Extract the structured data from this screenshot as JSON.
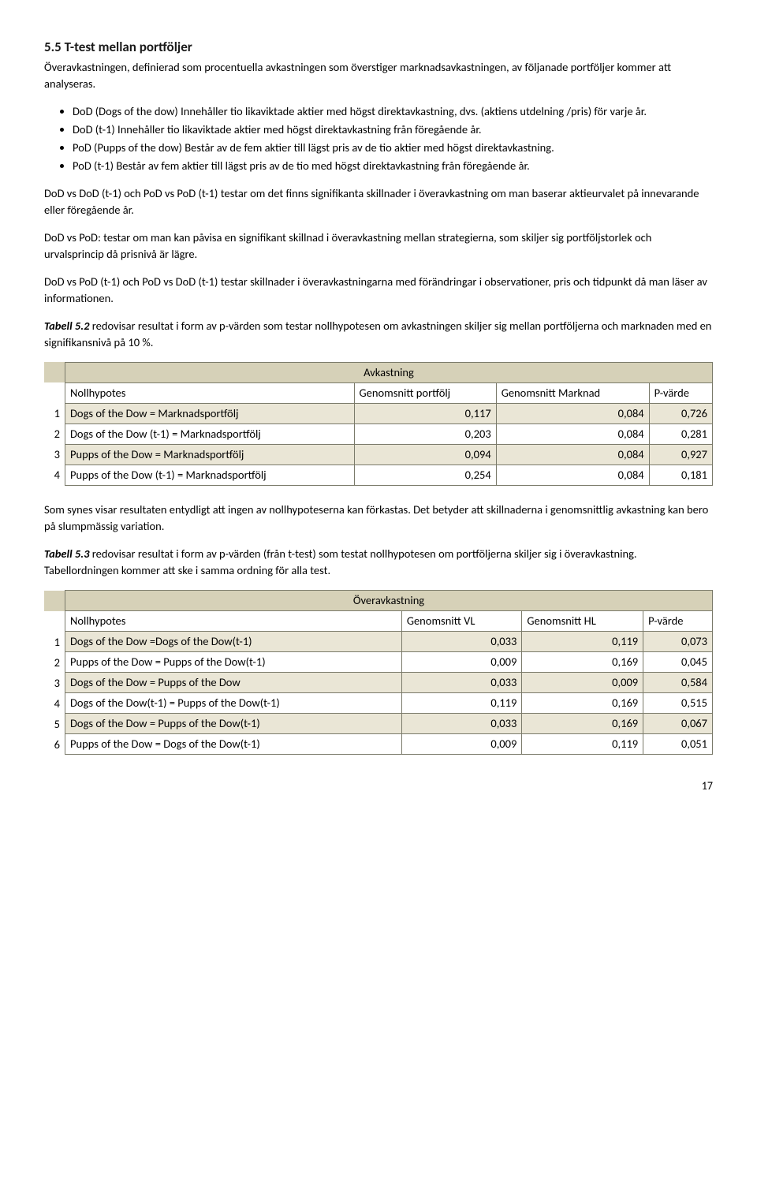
{
  "heading": "5.5 T-test mellan portföljer",
  "intro": "Överavkastningen, definierad som procentuella avkastningen som överstiger marknadsavkastningen, av följanade portföljer kommer att analyseras.",
  "bullets": [
    "DoD (Dogs of the dow) Innehåller tio likaviktade aktier med högst direktavkastning, dvs. (aktiens utdelning /pris) för varje år.",
    "DoD  (t-1) Innehåller tio likaviktade aktier med högst direktavkastning från föregående år.",
    "PoD (Pupps of the dow) Består av de fem aktier till lägst pris av de tio aktier med högst direktavkastning.",
    "PoD (t-1) Består av fem aktier till lägst pris av de tio med högst direktavkastning från föregående år."
  ],
  "para1": "DoD vs DoD (t-1) och PoD vs PoD (t-1) testar om det finns signifikanta skillnader i överavkastning om man baserar aktieurvalet på innevarande eller föregående år.",
  "para2": "DoD vs PoD: testar om man kan påvisa en signifikant skillnad i överavkastning mellan strategierna, som skiljer sig portföljstorlek och urvalsprincip då prisnivå är lägre.",
  "para3": "DoD vs PoD (t-1) och PoD vs DoD (t-1) testar skillnader i överavkastningarna med förändringar i observationer, pris och tidpunkt då man läser av informationen.",
  "table52_intro_bold": "Tabell 5.2",
  "table52_intro_rest": " redovisar resultat i form av p-värden som testar nollhypotesen om avkastningen skiljer sig mellan portföljerna och marknaden med en signifikansnivå på 10 %.",
  "table52": {
    "title": "Avkastning",
    "columns": [
      "Nollhypotes",
      "Genomsnitt portfölj",
      "Genomsnitt Marknad",
      "P-värde"
    ],
    "rows": [
      [
        "1",
        "Dogs of the Dow = Marknadsportfölj",
        "0,117",
        "0,084",
        "0,726"
      ],
      [
        "2",
        "Dogs of the Dow (t-1)  = Marknadsportfölj",
        "0,203",
        "0,084",
        "0,281"
      ],
      [
        "3",
        "Pupps of the Dow = Marknadsportfölj",
        "0,094",
        "0,084",
        "0,927"
      ],
      [
        "4",
        "Pupps of the Dow (t-1)  = Marknadsportfölj",
        "0,254",
        "0,084",
        "0,181"
      ]
    ]
  },
  "mid_para": "Som synes visar resultaten entydligt att ingen av nollhypoteserna kan förkastas. Det betyder att skillnaderna i genomsnittlig avkastning kan bero på slumpmässig variation.",
  "table53_intro_bold": "Tabell 5.3",
  "table53_intro_rest": " redovisar resultat i form av p-värden (från t-test) som testat nollhypotesen om portföljerna skiljer sig i överavkastning. Tabellordningen kommer att ske i samma ordning för alla test.",
  "table53": {
    "title": "Överavkastning",
    "columns": [
      "Nollhypotes",
      "Genomsnitt VL",
      "Genomsnitt HL",
      "P-värde"
    ],
    "rows": [
      [
        "1",
        "Dogs of the Dow =Dogs of the Dow(t-1)",
        "0,033",
        "0,119",
        "0,073"
      ],
      [
        "2",
        "Pupps of the Dow = Pupps of the Dow(t-1)",
        "0,009",
        "0,169",
        "0,045"
      ],
      [
        "3",
        "Dogs of the Dow = Pupps of the Dow",
        "0,033",
        "0,009",
        "0,584"
      ],
      [
        "4",
        "Dogs of the Dow(t-1) = Pupps of the Dow(t-1)",
        "0,119",
        "0,169",
        "0,515"
      ],
      [
        "5",
        "Dogs of the Dow = Pupps of the Dow(t-1)",
        "0,033",
        "0,169",
        "0,067"
      ],
      [
        "6",
        "Pupps of the Dow = Dogs of the Dow(t-1)",
        "0,009",
        "0,119",
        "0,051"
      ]
    ]
  },
  "page_number": "17",
  "colors": {
    "header_bg": "#d6d1b8",
    "alt_bg": "#eae6d6",
    "border": "#7a7a6a"
  }
}
